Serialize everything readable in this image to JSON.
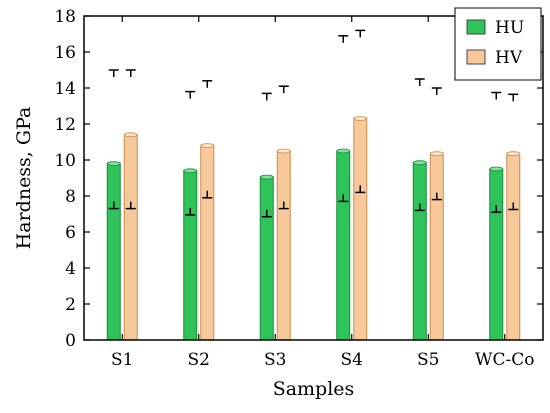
{
  "chart_data": {
    "type": "bar",
    "title": "",
    "xlabel": "Samples",
    "ylabel": "Hardness, GPa",
    "ylim": [
      0,
      18
    ],
    "yticks": [
      0,
      2,
      4,
      6,
      8,
      10,
      12,
      14,
      16,
      18
    ],
    "categories": [
      "S1",
      "S2",
      "S3",
      "S4",
      "S5",
      "WC-Co"
    ],
    "series": [
      {
        "name": "HU",
        "color": "#2ec45a",
        "values": [
          9.8,
          9.4,
          9.05,
          10.5,
          9.85,
          9.5
        ],
        "err_low": [
          7.3,
          6.95,
          6.85,
          7.7,
          7.2,
          7.1
        ],
        "err_high": [
          15.0,
          13.8,
          13.7,
          16.9,
          14.5,
          13.75
        ]
      },
      {
        "name": "HV",
        "color": "#f7c99a",
        "values": [
          11.4,
          10.8,
          10.5,
          12.3,
          10.35,
          10.35
        ],
        "err_low": [
          7.3,
          7.9,
          7.3,
          8.2,
          7.8,
          7.25
        ],
        "err_high": [
          15.0,
          14.4,
          14.1,
          17.2,
          14.0,
          13.65
        ]
      }
    ],
    "legend_position": "top-right",
    "grid": false
  }
}
